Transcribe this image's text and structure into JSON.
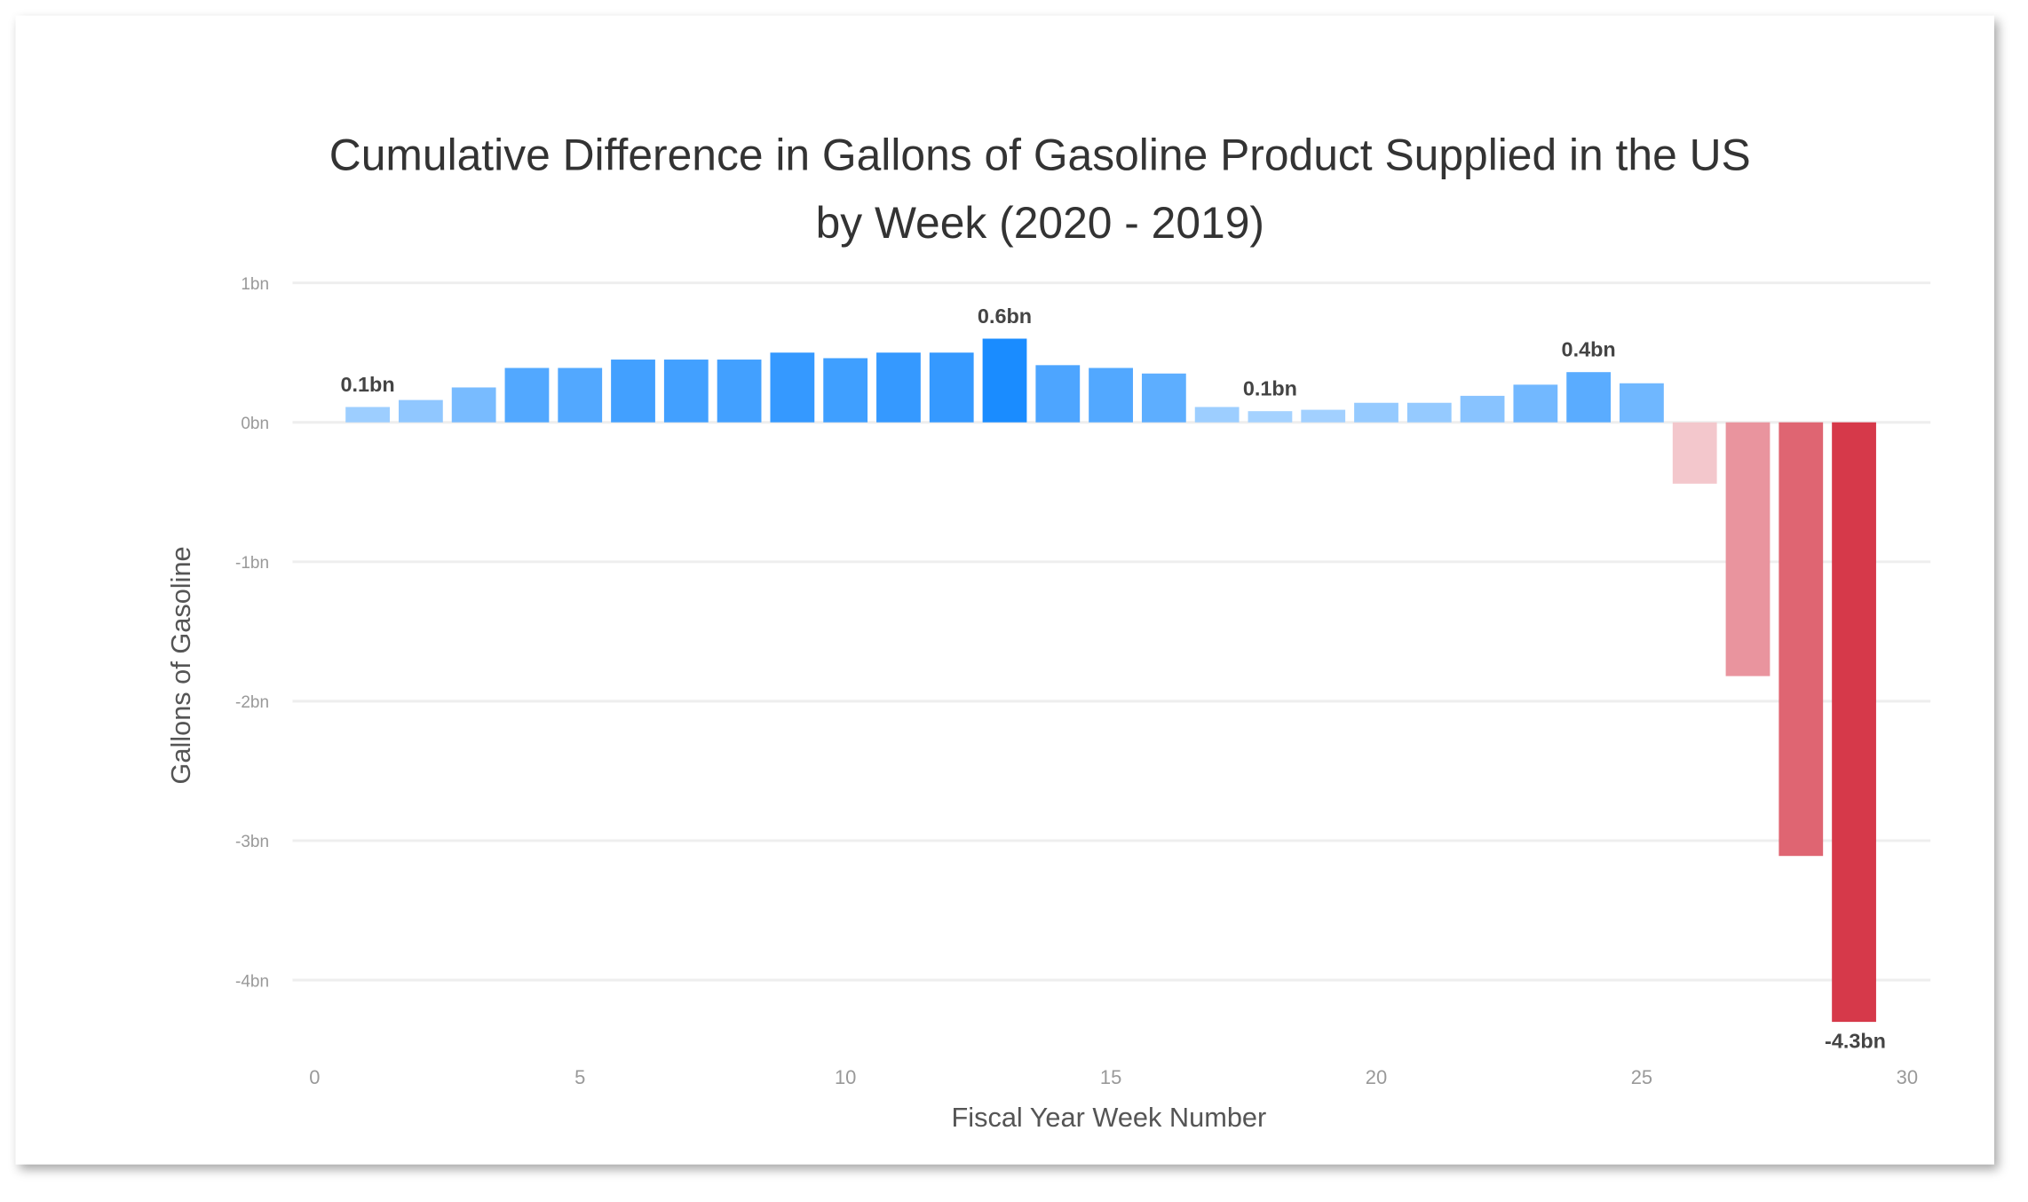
{
  "chart_data": {
    "type": "bar",
    "title": "Cumulative Difference in Gallons of Gasoline Product Supplied in the US by Week (2020 - 2019)",
    "title_lines": [
      "Cumulative Difference in Gallons of Gasoline Product Supplied in the US",
      "by Week (2020 - 2019)"
    ],
    "xlabel": "Fiscal Year Week Number",
    "ylabel": "Gallons of Gasoline",
    "xlim": [
      0,
      30
    ],
    "ylim": [
      -4.5,
      1
    ],
    "x_ticks": [
      0,
      5,
      10,
      15,
      20,
      25,
      30
    ],
    "y_ticks": [
      1,
      0,
      -1,
      -2,
      -3,
      -4
    ],
    "y_tick_labels": [
      "1bn",
      "0bn",
      "-1bn",
      "-2bn",
      "-3bn",
      "-4bn"
    ],
    "grid": true,
    "x": [
      1,
      2,
      3,
      4,
      5,
      6,
      7,
      8,
      9,
      10,
      11,
      12,
      13,
      14,
      15,
      16,
      17,
      18,
      19,
      20,
      21,
      22,
      23,
      24,
      25,
      26,
      27,
      28,
      29
    ],
    "values": [
      0.11,
      0.16,
      0.25,
      0.39,
      0.39,
      0.45,
      0.45,
      0.45,
      0.5,
      0.46,
      0.5,
      0.5,
      0.6,
      0.41,
      0.39,
      0.35,
      0.11,
      0.08,
      0.09,
      0.14,
      0.14,
      0.19,
      0.27,
      0.36,
      0.28,
      -0.44,
      -1.82,
      -3.11,
      -4.3
    ],
    "data_labels": [
      {
        "x": 1,
        "text": "0.1bn"
      },
      {
        "x": 13,
        "text": "0.6bn"
      },
      {
        "x": 18,
        "text": "0.1bn"
      },
      {
        "x": 24,
        "text": "0.4bn"
      },
      {
        "x": 29,
        "text": "-4.3bn"
      }
    ],
    "colors": {
      "positive": "#1a8cff",
      "negative": "#d6394a",
      "grid": "#eeeeee",
      "text": "#333333"
    }
  }
}
